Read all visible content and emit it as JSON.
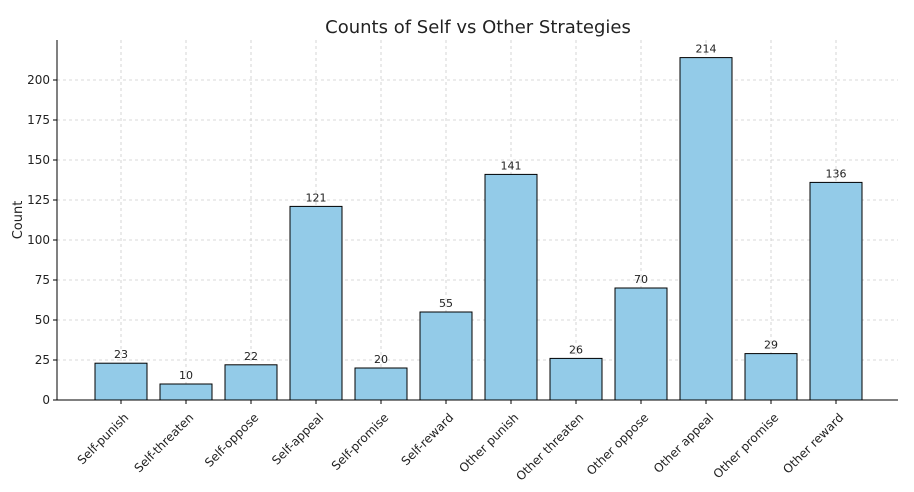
{
  "chart_data": {
    "type": "bar",
    "title": "Counts of Self vs Other Strategies",
    "xlabel": "",
    "ylabel": "Count",
    "categories": [
      "Self-punish",
      "Self-threaten",
      "Self-oppose",
      "Self-appeal",
      "Self-promise",
      "Self-reward",
      "Other punish",
      "Other threaten",
      "Other oppose",
      "Other appeal",
      "Other promise",
      "Other reward"
    ],
    "values": [
      23,
      10,
      22,
      121,
      20,
      55,
      141,
      26,
      70,
      214,
      29,
      136
    ],
    "ylim": [
      0,
      225
    ],
    "yticks": [
      0,
      25,
      50,
      75,
      100,
      125,
      150,
      175,
      200
    ],
    "grid": true,
    "bar_color": "#93cbe8",
    "edge_color": "#000000"
  }
}
